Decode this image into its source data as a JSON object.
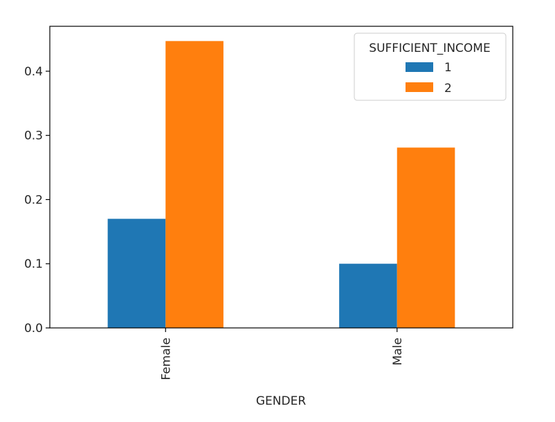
{
  "chart_data": {
    "type": "bar",
    "categories": [
      "Female",
      "Male"
    ],
    "series": [
      {
        "name": "1",
        "values": [
          0.17,
          0.1
        ],
        "color": "#1f77b4"
      },
      {
        "name": "2",
        "values": [
          0.447,
          0.281
        ],
        "color": "#ff7f0e"
      }
    ],
    "xlabel": "GENDER",
    "ylabel": "",
    "ylim": [
      0,
      0.47
    ],
    "yticks": [
      0.0,
      0.1,
      0.2,
      0.3,
      0.4
    ],
    "ytick_labels": [
      "0.0",
      "0.1",
      "0.2",
      "0.3",
      "0.4"
    ],
    "legend": {
      "title": "SUFFICIENT_INCOME",
      "placement": "top-right"
    },
    "grid": false
  }
}
